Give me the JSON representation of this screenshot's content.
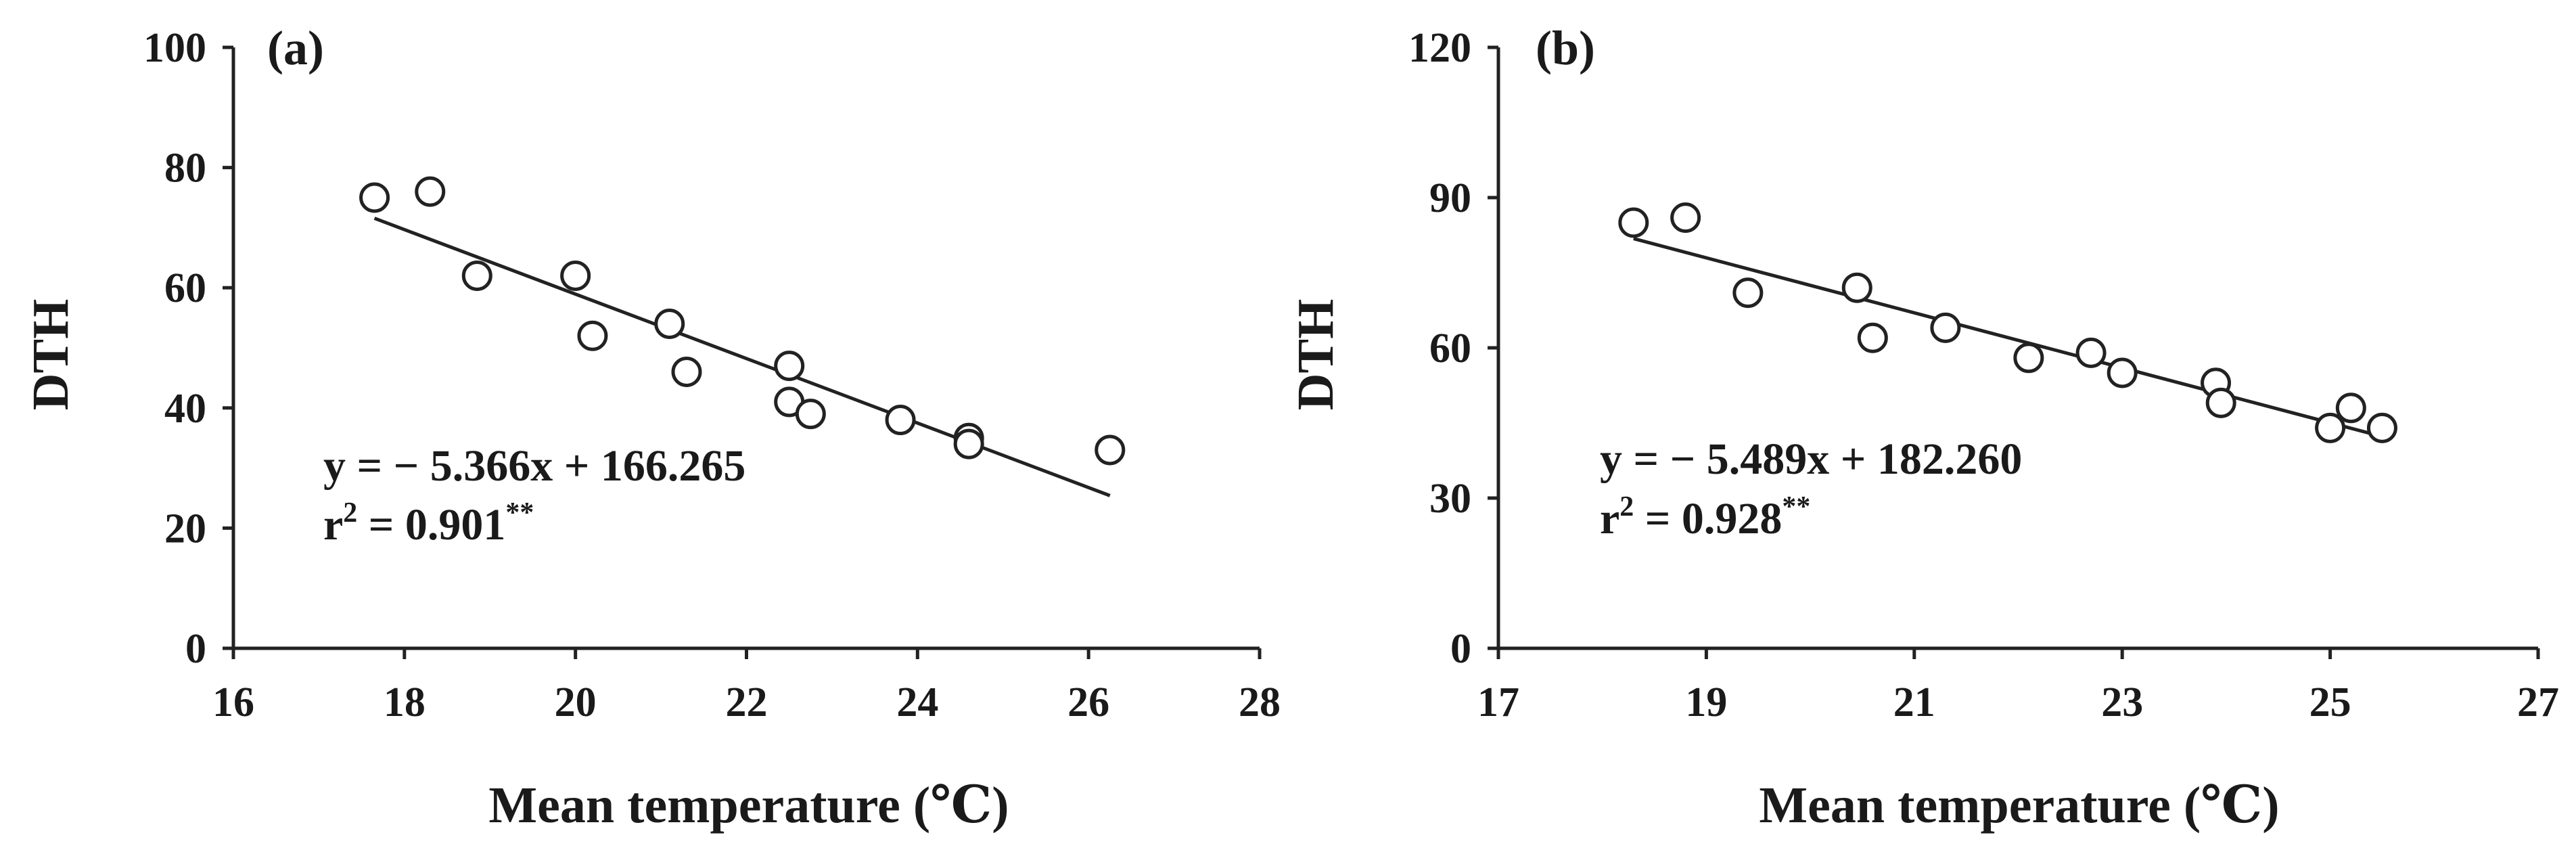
{
  "chart_data": [
    {
      "type": "scatter",
      "panel_label": "(a)",
      "xlabel": "Mean temperature (℃)",
      "ylabel": "DTH",
      "xlim": [
        16,
        28
      ],
      "ylim": [
        0,
        100
      ],
      "xticks": [
        16,
        18,
        20,
        22,
        24,
        26,
        28
      ],
      "yticks": [
        0,
        20,
        40,
        60,
        80,
        100
      ],
      "points": [
        {
          "x": 17.65,
          "y": 75
        },
        {
          "x": 18.3,
          "y": 76
        },
        {
          "x": 18.85,
          "y": 62
        },
        {
          "x": 20.0,
          "y": 62
        },
        {
          "x": 20.2,
          "y": 52
        },
        {
          "x": 21.1,
          "y": 54
        },
        {
          "x": 21.3,
          "y": 46
        },
        {
          "x": 22.5,
          "y": 47
        },
        {
          "x": 22.5,
          "y": 41
        },
        {
          "x": 22.75,
          "y": 39
        },
        {
          "x": 23.8,
          "y": 38
        },
        {
          "x": 24.6,
          "y": 35
        },
        {
          "x": 24.6,
          "y": 34
        },
        {
          "x": 26.25,
          "y": 33
        }
      ],
      "trendline": {
        "slope": -5.366,
        "intercept": 166.265,
        "x_range": [
          17.65,
          26.25
        ]
      },
      "equation": "y = − 5.366x + 166.265",
      "r2_text": "r",
      "r2_sup": "2",
      "r2_value": " = 0.901",
      "r2_sig": "**",
      "grid": false
    },
    {
      "type": "scatter",
      "panel_label": "(b)",
      "xlabel": "Mean temperature (℃)",
      "ylabel": "DTH",
      "xlim": [
        17,
        27
      ],
      "ylim": [
        0,
        120
      ],
      "xticks": [
        17,
        19,
        21,
        23,
        25,
        27
      ],
      "yticks": [
        0,
        30,
        60,
        90,
        120
      ],
      "points": [
        {
          "x": 18.3,
          "y": 85
        },
        {
          "x": 18.8,
          "y": 86
        },
        {
          "x": 19.4,
          "y": 71
        },
        {
          "x": 20.45,
          "y": 72
        },
        {
          "x": 20.6,
          "y": 62
        },
        {
          "x": 21.3,
          "y": 64
        },
        {
          "x": 22.1,
          "y": 58
        },
        {
          "x": 22.7,
          "y": 59
        },
        {
          "x": 23.0,
          "y": 55
        },
        {
          "x": 23.9,
          "y": 53
        },
        {
          "x": 23.95,
          "y": 49
        },
        {
          "x": 25.0,
          "y": 44
        },
        {
          "x": 25.2,
          "y": 48
        },
        {
          "x": 25.5,
          "y": 44
        }
      ],
      "trendline": {
        "slope": -5.489,
        "intercept": 182.26,
        "x_range": [
          18.3,
          25.5
        ]
      },
      "equation": "y = − 5.489x + 182.260",
      "r2_text": "r",
      "r2_sup": "2",
      "r2_value": " = 0.928",
      "r2_sig": "**",
      "grid": false
    }
  ]
}
